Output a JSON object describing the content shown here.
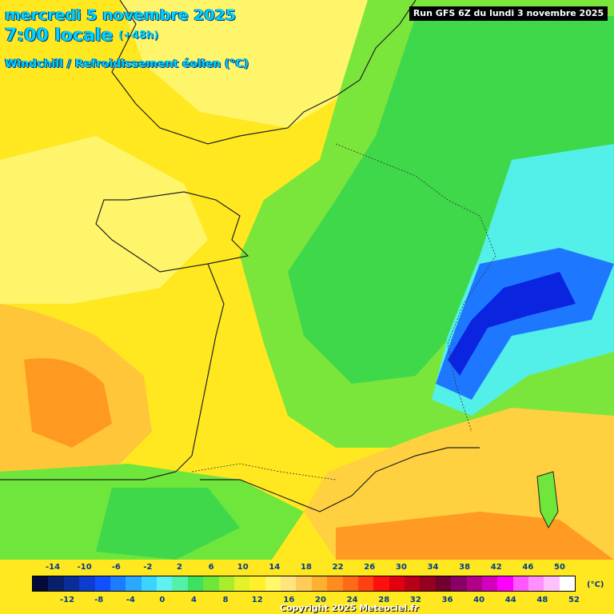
{
  "header": {
    "date_line": "mercredi 5 novembre 2025",
    "time_line": "7:00 locale",
    "offset": "(+48h)",
    "variable": "Windchill / Refroidissement éolien (°C)",
    "run": "Run GFS 6Z du lundi 3 novembre 2025"
  },
  "legend": {
    "top_labels": [
      "-14",
      "-10",
      "-6",
      "-2",
      "2",
      "6",
      "10",
      "14",
      "18",
      "22",
      "26",
      "30",
      "34",
      "38",
      "42",
      "46",
      "50"
    ],
    "bottom_labels": [
      "-12",
      "-8",
      "-4",
      "0",
      "4",
      "8",
      "12",
      "16",
      "20",
      "24",
      "28",
      "32",
      "36",
      "40",
      "44",
      "48",
      "52"
    ],
    "unit": "(°C)",
    "colors": [
      "#040a3a",
      "#08206a",
      "#0a2d9a",
      "#0d3cd0",
      "#1050ff",
      "#1c7cff",
      "#2aa8ff",
      "#39d4ff",
      "#5ff0f0",
      "#52f0a8",
      "#3ee060",
      "#6ee63a",
      "#a8ee2c",
      "#e4f22a",
      "#fff02a",
      "#fff86a",
      "#ffe480",
      "#ffcc5a",
      "#ffb030",
      "#ff8c20",
      "#ff6a18",
      "#ff4010",
      "#ff1010",
      "#e00010",
      "#b80018",
      "#940020",
      "#700030",
      "#880066",
      "#b0008a",
      "#d400c0",
      "#ff00ff",
      "#ff58ff",
      "#ff90ff",
      "#ffc0ff",
      "#ffffff"
    ]
  },
  "copyright": "Copyright 2025 Meteociel.fr",
  "map": {
    "colors": {
      "cold_core": "#0018d0",
      "cold": "#1a6cff",
      "cyan": "#4cf0f8",
      "green_dark": "#30e040",
      "green": "#6ee83a",
      "lime": "#b0ee2a",
      "yellow": "#ffee20",
      "light_yellow": "#fff870",
      "orange": "#ffaa28",
      "deep_orange": "#ff8a1a"
    }
  }
}
